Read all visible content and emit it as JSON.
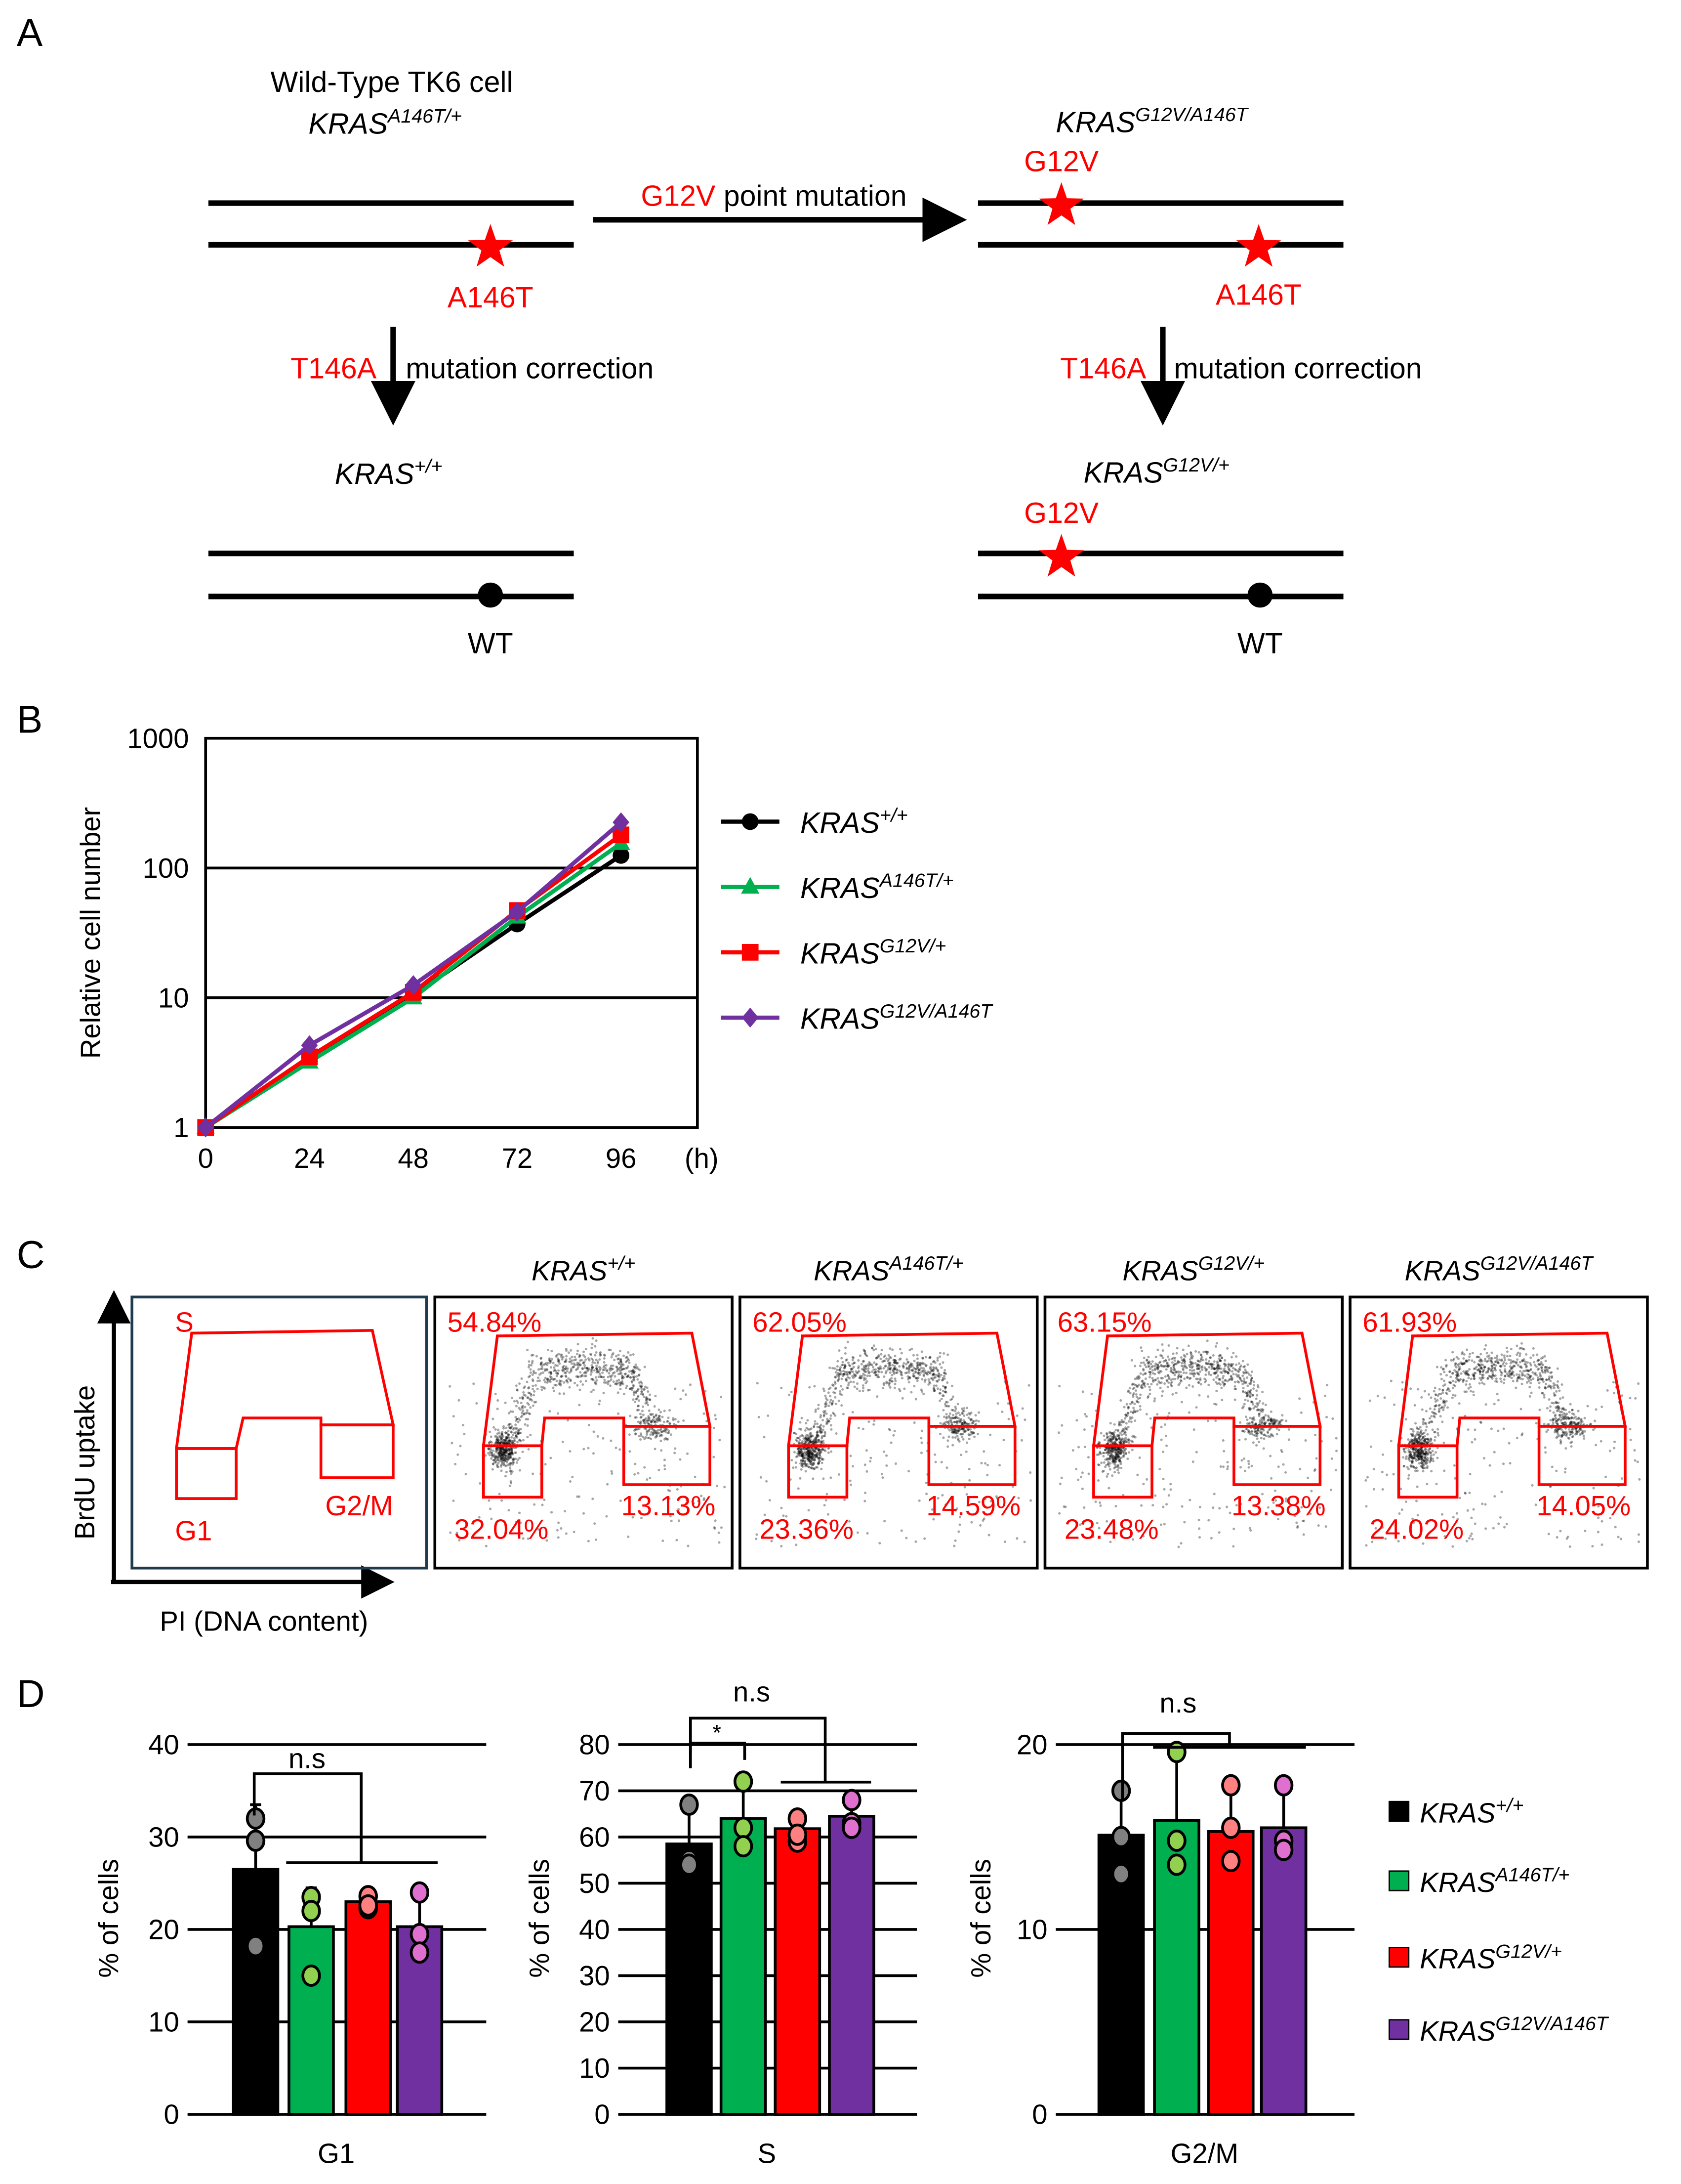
{
  "colors": {
    "black": "#000000",
    "green": "#00b050",
    "red": "#ff0000",
    "purple": "#7030a0",
    "annot": "#ff0000"
  },
  "panelA": {
    "label": "A",
    "wt_title": "Wild-Type TK6 cell",
    "wt_genotype": {
      "base": "KRAS",
      "sup": "A146T/+"
    },
    "wt_mut_label": "A146T",
    "arrow_mut": "G12V",
    "arrow_text": "point mutation",
    "dm_genotype": {
      "base": "KRAS",
      "sup": "G12V/A146T"
    },
    "dm_mut1": "G12V",
    "dm_mut2": "A146T",
    "corr_mut": "T146A",
    "corr_text": "mutation correction",
    "wtwt_genotype": {
      "base": "KRAS",
      "sup": "+/+"
    },
    "g12v_genotype": {
      "base": "KRAS",
      "sup": "G12V/+"
    },
    "g12v_mut": "G12V",
    "wt_allele": "WT"
  },
  "legend": [
    {
      "base": "KRAS",
      "sup": "+/+",
      "color": "#000000",
      "marker": "circle"
    },
    {
      "base": "KRAS",
      "sup": "A146T/+",
      "color": "#00b050",
      "marker": "triangle"
    },
    {
      "base": "KRAS",
      "sup": "G12V/+",
      "color": "#ff0000",
      "marker": "square"
    },
    {
      "base": "KRAS",
      "sup": "G12V/A146T",
      "color": "#7030a0",
      "marker": "diamond"
    }
  ],
  "panelB": {
    "label": "B"
  },
  "panelC": {
    "label": "C",
    "y_axis": "BrdU uptake",
    "x_axis": "PI (DNA content)",
    "schematic": {
      "s": "S",
      "g1": "G1",
      "g2m": "G2/M"
    },
    "plots": [
      {
        "genotype": {
          "base": "KRAS",
          "sup": "+/+"
        },
        "s": "54.84%",
        "g1": "32.04%",
        "g2m": "13.13%"
      },
      {
        "genotype": {
          "base": "KRAS",
          "sup": "A146T/+"
        },
        "s": "62.05%",
        "g1": "23.36%",
        "g2m": "14.59%"
      },
      {
        "genotype": {
          "base": "KRAS",
          "sup": "G12V/+"
        },
        "s": "63.15%",
        "g1": "23.48%",
        "g2m": "13.38%"
      },
      {
        "genotype": {
          "base": "KRAS",
          "sup": "G12V/A146T"
        },
        "s": "61.93%",
        "g1": "24.02%",
        "g2m": "14.05%"
      }
    ]
  },
  "panelD": {
    "label": "D"
  },
  "chart_data": [
    {
      "type": "line",
      "ylabel": "Relative cell number",
      "x_unit": "(h)",
      "x": [
        0,
        24,
        48,
        72,
        96
      ],
      "yscale": "log",
      "ylim": [
        1,
        1000
      ],
      "yticks": [
        "1",
        "10",
        "100",
        "1000"
      ],
      "xticks": [
        "0",
        "24",
        "48",
        "72",
        "96"
      ],
      "grid": "horizontal",
      "legend_position": "right",
      "series": [
        {
          "name": "KRAS+/+",
          "values": [
            1,
            3.5,
            10.5,
            37,
            125
          ]
        },
        {
          "name": "KRASA146T/+",
          "values": [
            1,
            3.2,
            10,
            42,
            155
          ]
        },
        {
          "name": "KRASG12V/+",
          "values": [
            1,
            3.5,
            11,
            47,
            180
          ]
        },
        {
          "name": "KRASG12V/A146T",
          "values": [
            1,
            4.3,
            12.5,
            46,
            225
          ]
        }
      ]
    },
    {
      "type": "bar",
      "xlabel": "G1",
      "ylabel": "% of cells",
      "ylim": [
        0,
        40
      ],
      "yticks": [
        "0",
        "10",
        "20",
        "30",
        "40"
      ],
      "means": [
        26.5,
        20.3,
        23.0,
        20.3
      ],
      "err_upper": [
        33.5,
        24.5,
        23.6,
        24.0
      ],
      "err_lower": [
        26.5,
        16.0,
        22.4,
        17.5
      ],
      "points": [
        [
          32,
          29.6,
          18.2
        ],
        [
          23.5,
          22,
          15
        ],
        [
          23.6,
          22.3,
          22.6
        ],
        [
          24,
          19.5,
          17.5
        ]
      ],
      "annotations": [
        {
          "text": "n.s"
        }
      ]
    },
    {
      "type": "bar",
      "xlabel": "S",
      "ylabel": "% of cells",
      "ylim": [
        0,
        80
      ],
      "yticks": [
        "0",
        "10",
        "20",
        "30",
        "40",
        "50",
        "60",
        "70",
        "80"
      ],
      "means": [
        58.5,
        64.0,
        61.8,
        64.5
      ],
      "err_upper": [
        67,
        72,
        64,
        68
      ],
      "err_lower": [
        54,
        58,
        59,
        62
      ],
      "points": [
        [
          67,
          55,
          54
        ],
        [
          72,
          62,
          58
        ],
        [
          64,
          59,
          60.5
        ],
        [
          68,
          63,
          62
        ]
      ],
      "annotations": [
        {
          "text": "n.s"
        },
        {
          "text": "*"
        }
      ]
    },
    {
      "type": "bar",
      "xlabel": "G2/M",
      "ylabel": "% of cells",
      "ylim": [
        0,
        20
      ],
      "yticks": [
        "0",
        "10",
        "20"
      ],
      "means": [
        15.1,
        15.9,
        15.3,
        15.5
      ],
      "err_upper": [
        17.5,
        19.2,
        17.8,
        17.8
      ],
      "err_lower": [
        13.0,
        12.8,
        13.7,
        13.6
      ],
      "points": [
        [
          17.5,
          15,
          13
        ],
        [
          19.6,
          14.8,
          13.5
        ],
        [
          17.8,
          15.5,
          13.7
        ],
        [
          17.8,
          14.8,
          14.3
        ]
      ],
      "annotations": [
        {
          "text": "n.s"
        }
      ]
    }
  ]
}
